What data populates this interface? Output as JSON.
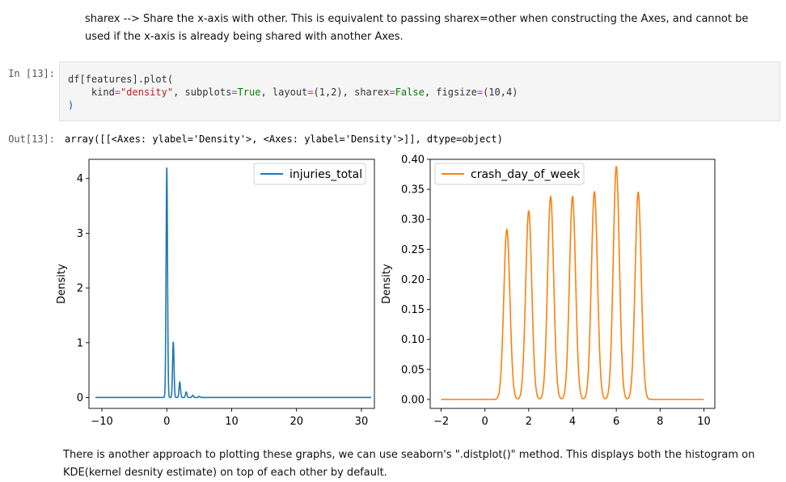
{
  "markdown_top": "sharex --> Share the x-axis with other. This is equivalent to passing sharex=other when constructing the Axes, and cannot be used if the x-axis is already being shared with another Axes.",
  "markdown_bottom": "There is another approach to plotting these graphs, we can use seaborn's \".distplot()\" method. This displays both the histogram on KDE(kernel desnity estimate) on top of each other by default.",
  "input_prompt": "In [13]:",
  "output_prompt": "Out[13]:",
  "code": {
    "line1": [
      "df[features].plot("
    ],
    "kind_key": "kind",
    "kind_val": "\"density\"",
    "subplots_key": "subplots",
    "subplots_val": "True",
    "layout_key": "layout",
    "layout_val": "(1,2)",
    "sharex_key": "sharex",
    "sharex_val": "False",
    "figsize_key": "figsize",
    "figsize_val": "(10,4)",
    "close": ")"
  },
  "output_text": "array([[<Axes: ylabel='Density'>, <Axes: ylabel='Density'>]], dtype=object)",
  "chart_data": [
    {
      "type": "line",
      "ylabel": "Density",
      "xlim": [
        -12,
        32
      ],
      "ylim": [
        -0.2,
        4.35
      ],
      "xticks": [
        -10,
        0,
        10,
        20,
        30
      ],
      "xtick_labels": [
        "−10",
        "0",
        "10",
        "20",
        "30"
      ],
      "yticks": [
        0,
        1,
        2,
        3,
        4
      ],
      "ytick_labels": [
        "0",
        "1",
        "2",
        "3",
        "4"
      ],
      "legend_loc": "upper-right",
      "color": "#1f77b4",
      "series": [
        {
          "name": "injuries_total",
          "x_range": [
            -11,
            31.5
          ],
          "peaks": [
            {
              "x": 0,
              "y": 4.22
            },
            {
              "x": 1,
              "y": 1.02
            },
            {
              "x": 2,
              "y": 0.28
            },
            {
              "x": 3,
              "y": 0.1
            },
            {
              "x": 4,
              "y": 0.04
            },
            {
              "x": 5,
              "y": 0.02
            }
          ]
        }
      ]
    },
    {
      "type": "line",
      "ylabel": "Density",
      "xlim": [
        -2.5,
        10.5
      ],
      "ylim": [
        -0.015,
        0.4
      ],
      "xticks": [
        -2,
        0,
        2,
        4,
        6,
        8,
        10
      ],
      "xtick_labels": [
        "−2",
        "0",
        "2",
        "4",
        "6",
        "8",
        "10"
      ],
      "yticks": [
        0,
        0.05,
        0.1,
        0.15,
        0.2,
        0.25,
        0.3,
        0.35,
        0.4
      ],
      "ytick_labels": [
        "0.00",
        "0.05",
        "0.10",
        "0.15",
        "0.20",
        "0.25",
        "0.30",
        "0.35",
        "0.40"
      ],
      "legend_loc": "upper-left",
      "color": "#ff7f0e",
      "series": [
        {
          "name": "crash_day_of_week",
          "x_range": [
            -2,
            10
          ],
          "peaks": [
            {
              "x": 1,
              "y": 0.283
            },
            {
              "x": 2,
              "y": 0.314
            },
            {
              "x": 3,
              "y": 0.338
            },
            {
              "x": 4,
              "y": 0.338
            },
            {
              "x": 5,
              "y": 0.346
            },
            {
              "x": 6,
              "y": 0.388
            },
            {
              "x": 7,
              "y": 0.345
            }
          ]
        }
      ]
    }
  ]
}
